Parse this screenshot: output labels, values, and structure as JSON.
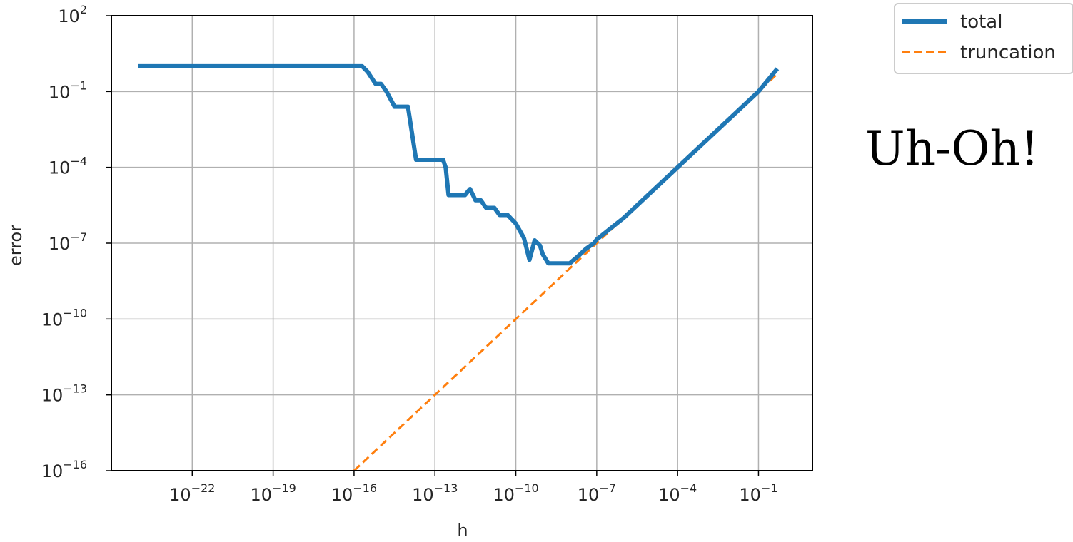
{
  "annotation": "Uh-Oh!",
  "colors": {
    "total": "#1f77b4",
    "truncation": "#ff7f0e",
    "grid": "#b0b0b0",
    "axes": "#000000"
  },
  "chart_data": {
    "type": "line",
    "xlabel": "h",
    "ylabel": "error",
    "xscale": "log",
    "yscale": "log",
    "xlim": [
      1e-25,
      10
    ],
    "ylim": [
      1e-16,
      100
    ],
    "grid": true,
    "legend_position": "top-right, outside plot",
    "x_ticks": [
      {
        "base": "10",
        "exp": "−22",
        "value": 1e-22
      },
      {
        "base": "10",
        "exp": "−19",
        "value": 1e-19
      },
      {
        "base": "10",
        "exp": "−16",
        "value": 1e-16
      },
      {
        "base": "10",
        "exp": "−13",
        "value": 1e-13
      },
      {
        "base": "10",
        "exp": "−10",
        "value": 1e-10
      },
      {
        "base": "10",
        "exp": "−7",
        "value": 1e-07
      },
      {
        "base": "10",
        "exp": "−4",
        "value": 0.0001
      },
      {
        "base": "10",
        "exp": "−1",
        "value": 0.1
      }
    ],
    "y_ticks": [
      {
        "base": "10",
        "exp": "2",
        "value": 100
      },
      {
        "base": "10",
        "exp": "−1",
        "value": 0.1
      },
      {
        "base": "10",
        "exp": "−4",
        "value": 0.0001
      },
      {
        "base": "10",
        "exp": "−7",
        "value": 1e-07
      },
      {
        "base": "10",
        "exp": "−10",
        "value": 1e-10
      },
      {
        "base": "10",
        "exp": "−13",
        "value": 1e-13
      },
      {
        "base": "10",
        "exp": "−16",
        "value": 1e-16
      }
    ],
    "series": [
      {
        "name": "total",
        "style": "solid",
        "x": [
          1e-24,
          1e-16,
          2e-16,
          3.2e-16,
          6.3e-16,
          1e-15,
          1.6e-15,
          3.2e-15,
          6.3e-15,
          1e-14,
          2e-14,
          4e-14,
          1e-13,
          2e-13,
          2.5e-13,
          3.2e-13,
          6.3e-13,
          1.3e-12,
          2e-12,
          3.2e-12,
          5e-12,
          7.9e-12,
          1.6e-11,
          2.5e-11,
          5e-11,
          1e-10,
          2e-10,
          3.2e-10,
          5e-10,
          7.9e-10,
          1e-09,
          1.6e-09,
          2.5e-09,
          4e-09,
          6.3e-09,
          1e-08,
          2e-08,
          4e-08,
          7.9e-08,
          1e-07,
          1e-06,
          1e-05,
          0.0001,
          0.001,
          0.01,
          0.1,
          0.5
        ],
        "y": [
          1,
          1,
          1,
          0.6,
          0.2,
          0.2,
          0.1,
          0.025,
          0.025,
          0.025,
          0.0002,
          0.0002,
          0.0002,
          0.0002,
          0.0001,
          8e-06,
          8e-06,
          8e-06,
          1.4e-05,
          5e-06,
          5e-06,
          2.5e-06,
          2.5e-06,
          1.3e-06,
          1.3e-06,
          6e-07,
          1.6e-07,
          2.2e-08,
          1.3e-07,
          8e-08,
          3.6e-08,
          1.6e-08,
          1.6e-08,
          1.6e-08,
          1.6e-08,
          1.6e-08,
          3e-08,
          6e-08,
          1e-07,
          1.4e-07,
          1e-06,
          1e-05,
          0.0001,
          0.001,
          0.01,
          0.1,
          0.8
        ]
      },
      {
        "name": "truncation",
        "style": "dashed",
        "x": [
          1e-16,
          0.5
        ],
        "y": [
          1e-16,
          0.5
        ]
      }
    ]
  }
}
